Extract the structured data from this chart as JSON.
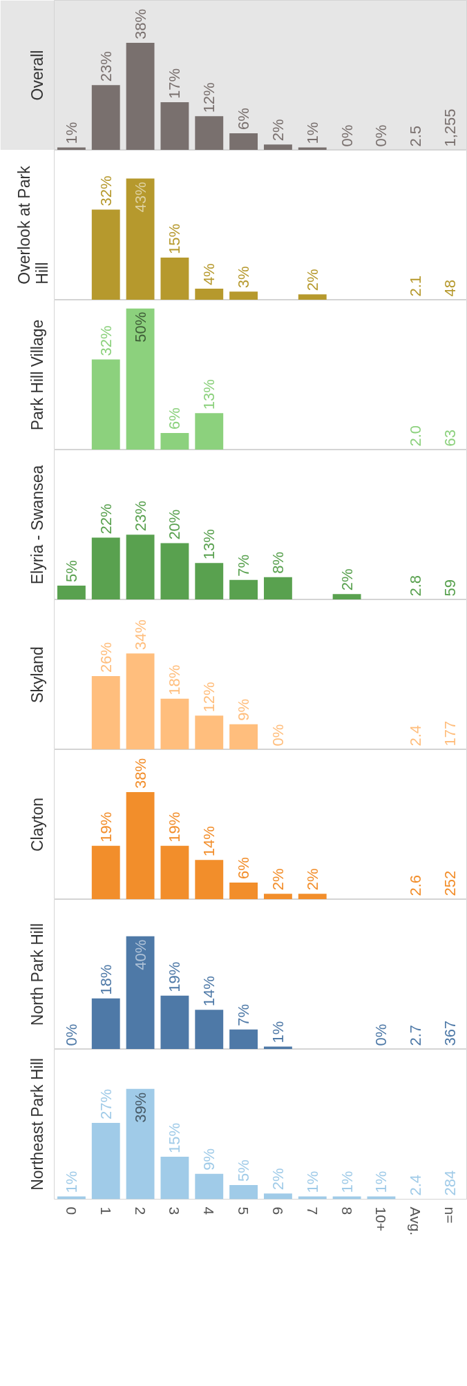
{
  "chart_data": [
    {
      "type": "bar",
      "title": "Overall",
      "categories": [
        "0",
        "1",
        "2",
        "3",
        "4",
        "5",
        "6",
        "7",
        "8",
        "10+",
        "Avg.",
        "n="
      ],
      "values": [
        1,
        23,
        38,
        17,
        12,
        6,
        2,
        1,
        0,
        0,
        null,
        null
      ],
      "value_labels": [
        "1%",
        "23%",
        "38%",
        "17%",
        "12%",
        "6%",
        "2%",
        "1%",
        "0%",
        "0%",
        "2.5",
        "1,255"
      ],
      "color": "#79706e",
      "tick_labels": false
    },
    {
      "type": "bar",
      "title": "Overlook at Park Hill",
      "categories": [
        "0",
        "1",
        "2",
        "3",
        "4",
        "5",
        "6",
        "7",
        "8",
        "10+",
        "Avg.",
        "n="
      ],
      "values": [
        null,
        32,
        43,
        15,
        4,
        3,
        null,
        2,
        null,
        null,
        null,
        null
      ],
      "value_labels": [
        null,
        "32%",
        "43%",
        "15%",
        "4%",
        "3%",
        null,
        "2%",
        null,
        null,
        "2.1",
        "48"
      ],
      "color": "#b6992d",
      "tick_labels": false
    },
    {
      "type": "bar",
      "title": "Park Hill Village",
      "categories": [
        "0",
        "1",
        "2",
        "3",
        "4",
        "5",
        "6",
        "7",
        "8",
        "10+",
        "Avg.",
        "n="
      ],
      "values": [
        null,
        32,
        50,
        6,
        13,
        null,
        null,
        null,
        null,
        null,
        null,
        null
      ],
      "value_labels": [
        null,
        "32%",
        "50%",
        "6%",
        "13%",
        null,
        null,
        null,
        null,
        null,
        "2.0",
        "63"
      ],
      "color": "#8cd17d",
      "tick_labels": false
    },
    {
      "type": "bar",
      "title": "Elyria - Swansea",
      "categories": [
        "0",
        "1",
        "2",
        "3",
        "4",
        "5",
        "6",
        "7",
        "8",
        "10+",
        "Avg.",
        "n="
      ],
      "values": [
        5,
        22,
        23,
        20,
        13,
        7,
        8,
        null,
        2,
        null,
        null,
        null
      ],
      "value_labels": [
        "5%",
        "22%",
        "23%",
        "20%",
        "13%",
        "7%",
        "8%",
        null,
        "2%",
        null,
        "2.8",
        "59"
      ],
      "color": "#59a14f",
      "tick_labels": false
    },
    {
      "type": "bar",
      "title": "Skyland",
      "categories": [
        "0",
        "1",
        "2",
        "3",
        "4",
        "5",
        "6",
        "7",
        "8",
        "10+",
        "Avg.",
        "n="
      ],
      "values": [
        null,
        26,
        34,
        18,
        12,
        9,
        0,
        null,
        null,
        null,
        null,
        null
      ],
      "value_labels": [
        null,
        "26%",
        "34%",
        "18%",
        "12%",
        "9%",
        "0%",
        null,
        null,
        null,
        "2.4",
        "177"
      ],
      "color": "#ffbe7d",
      "tick_labels": false
    },
    {
      "type": "bar",
      "title": "Clayton",
      "categories": [
        "0",
        "1",
        "2",
        "3",
        "4",
        "5",
        "6",
        "7",
        "8",
        "10+",
        "Avg.",
        "n="
      ],
      "values": [
        null,
        19,
        38,
        19,
        14,
        6,
        2,
        2,
        null,
        null,
        null,
        null
      ],
      "value_labels": [
        null,
        "19%",
        "38%",
        "19%",
        "14%",
        "6%",
        "2%",
        "2%",
        null,
        null,
        "2.6",
        "252"
      ],
      "color": "#f28e2b",
      "tick_labels": false
    },
    {
      "type": "bar",
      "title": "North Park Hill",
      "categories": [
        "0",
        "1",
        "2",
        "3",
        "4",
        "5",
        "6",
        "7",
        "8",
        "10+",
        "Avg.",
        "n="
      ],
      "values": [
        0,
        18,
        40,
        19,
        14,
        7,
        1,
        null,
        null,
        0,
        null,
        null
      ],
      "value_labels": [
        "0%",
        "18%",
        "40%",
        "19%",
        "14%",
        "7%",
        "1%",
        null,
        null,
        "0%",
        "2.7",
        "367"
      ],
      "color": "#4e79a7",
      "tick_labels": false
    },
    {
      "type": "bar",
      "title": "Northeast Park Hill",
      "categories": [
        "0",
        "1",
        "2",
        "3",
        "4",
        "5",
        "6",
        "7",
        "8",
        "10+",
        "Avg.",
        "n="
      ],
      "values": [
        1,
        27,
        39,
        15,
        9,
        5,
        2,
        1,
        1,
        1,
        null,
        null
      ],
      "value_labels": [
        "1%",
        "27%",
        "39%",
        "15%",
        "9%",
        "5%",
        "2%",
        "1%",
        "1%",
        "1%",
        "2.4",
        "284"
      ],
      "color": "#a0cbe8",
      "tick_labels": "x"
    }
  ]
}
